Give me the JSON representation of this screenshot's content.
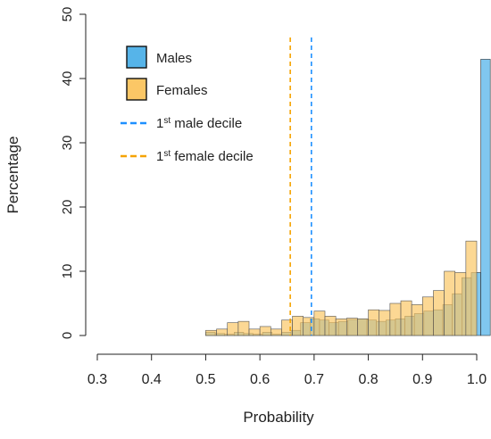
{
  "chart_data": {
    "type": "histogram",
    "xlabel": "Probability",
    "ylabel": "Percentage",
    "xlim": [
      0.3,
      1.0
    ],
    "ylim": [
      0,
      50
    ],
    "x_ticks": [
      "0.3",
      "0.4",
      "0.5",
      "0.6",
      "0.7",
      "0.8",
      "0.9",
      "1.0"
    ],
    "y_ticks": [
      "0",
      "10",
      "20",
      "30",
      "40",
      "50"
    ],
    "bin_width": 0.0175,
    "bin_start": 0.5,
    "series": [
      {
        "name": "Males",
        "color": "#56b4e9",
        "values": [
          0.5,
          0.3,
          0.2,
          0.5,
          0.3,
          0.2,
          0.5,
          0.2,
          0.5,
          0.8,
          2.0,
          2.6,
          2.4,
          2.0,
          2.2,
          2.5,
          2.6,
          2.4,
          2.2,
          2.4,
          2.6,
          3.0,
          3.4,
          3.8,
          4.0,
          4.8,
          6.5,
          9.0,
          9.8,
          43.0
        ]
      },
      {
        "name": "Females",
        "color": "#fbc766",
        "values": [
          0.8,
          1.0,
          2.0,
          2.2,
          1.0,
          1.4,
          1.0,
          2.4,
          3.0,
          2.8,
          3.8,
          3.0,
          2.6,
          2.7,
          2.6,
          4.0,
          3.9,
          5.0,
          5.4,
          4.8,
          6.0,
          7.0,
          10.0,
          9.8,
          14.7
        ]
      }
    ],
    "female_bin_start": 0.5,
    "reference_lines": [
      {
        "name": "1st male decile",
        "x": 0.695,
        "color": "#1e90ff",
        "style": "dashed"
      },
      {
        "name": "1st female decile",
        "x": 0.656,
        "color": "#f5a300",
        "style": "dashed"
      }
    ],
    "legend": {
      "placement": "top-left",
      "items": [
        {
          "label": "Males",
          "kind": "box",
          "color": "#56b4e9"
        },
        {
          "label": "Females",
          "kind": "box",
          "color": "#fbc766"
        },
        {
          "label": "1",
          "sup": "st",
          "rest": " male decile",
          "kind": "dashed",
          "color": "#1e90ff"
        },
        {
          "label": "1",
          "sup": "st",
          "rest": " female decile",
          "kind": "dashed",
          "color": "#f5a300"
        }
      ]
    },
    "grid": false
  }
}
